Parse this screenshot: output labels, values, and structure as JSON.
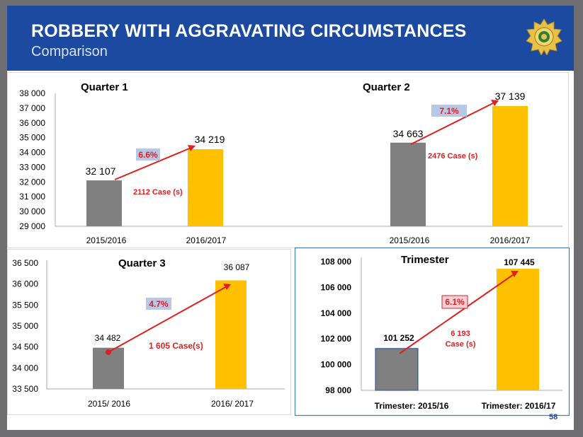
{
  "header": {
    "title": "ROBBERY WITH AGGRAVATING CIRCUMSTANCES",
    "subtitle": "Comparison",
    "page_number": "58"
  },
  "colors": {
    "header_bg": "#1b4aa0",
    "bar_previous": "#808080",
    "bar_current": "#ffc000",
    "arrow": "#e02020",
    "pct_box": "#b8c7e6"
  },
  "chart_data": [
    {
      "type": "bar",
      "title": "Quarter 1",
      "categories": [
        "2015/2016",
        "2016/2017"
      ],
      "values": [
        32107,
        34219
      ],
      "value_labels": [
        "32 107",
        "34 219"
      ],
      "ylim": [
        29000,
        38000
      ],
      "yticks": [
        "29 000",
        "30 000",
        "31 000",
        "32 000",
        "33 000",
        "34 000",
        "35 000",
        "36 000",
        "37 000",
        "38 000"
      ],
      "change_label": "6.6%",
      "cases_label": "2112  Case (s)"
    },
    {
      "type": "bar",
      "title": "Quarter 2",
      "categories": [
        "2015/2016",
        "2016/2017"
      ],
      "values": [
        34663,
        37139
      ],
      "value_labels": [
        "34 663",
        "37 139"
      ],
      "ylim": [
        29000,
        38000
      ],
      "yticks": [],
      "change_label": "7.1%",
      "cases_label": "2476  Case (s)"
    },
    {
      "type": "bar",
      "title": "Quarter 3",
      "categories": [
        "2015/ 2016",
        "2016/ 2017"
      ],
      "values": [
        34482,
        36087
      ],
      "value_labels": [
        "34 482",
        "36 087"
      ],
      "ylim": [
        33500,
        36500
      ],
      "yticks": [
        "33 500",
        "34 000",
        "34 500",
        "35 000",
        "35 500",
        "36 000",
        "36 500"
      ],
      "change_label": "4.7%",
      "cases_label": "1 605 Case(s)"
    },
    {
      "type": "bar",
      "title": "Trimester",
      "categories": [
        "Trimester: 2015/16",
        "Trimester: 2016/17"
      ],
      "values": [
        101252,
        107445
      ],
      "value_labels": [
        "101 252",
        "107 445"
      ],
      "ylim": [
        98000,
        108000
      ],
      "yticks": [
        "98 000",
        "100 000",
        "102 000",
        "104 000",
        "106 000",
        "108 000"
      ],
      "change_label": "6.1%",
      "cases_label_line1": "6 193",
      "cases_label_line2": "Case (s)"
    }
  ]
}
